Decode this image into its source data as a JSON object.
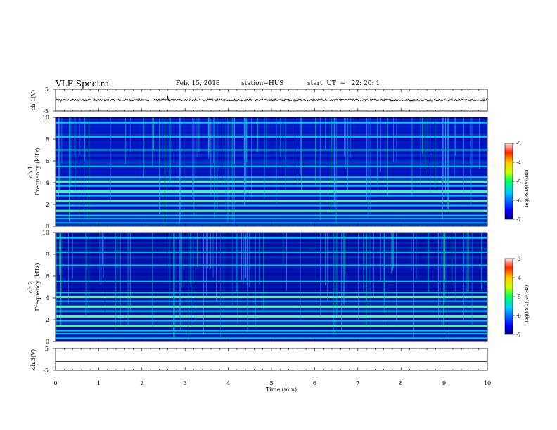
{
  "header": {
    "title": "VLF Spectra",
    "date": "Feb. 15, 2018",
    "station": "station=HUS",
    "start": "start  UT  =   22: 20: 1"
  },
  "chart_data": [
    {
      "type": "line",
      "panel": "ch1-waveform",
      "ylabel": "ch.1(V)",
      "ylim": [
        -5,
        5
      ],
      "yticks": [
        "5",
        "-5"
      ],
      "description_values": {
        "baseline_V": 0,
        "noise_amplitude_V": 0.5
      }
    },
    {
      "type": "heatmap",
      "panel": "ch1-spectrogram",
      "ylabel": "ch.1\nFrequency  (kHz)",
      "ylim": [
        0,
        10
      ],
      "yticks": [
        "0",
        "2",
        "4",
        "6",
        "8",
        "10"
      ],
      "xlim": [
        0,
        10
      ],
      "colorbar": {
        "label": "log(PSD)(V²/Hz)",
        "range": [
          -7,
          -3
        ],
        "ticks": [
          "-3",
          "-4",
          "-5",
          "-6",
          "-7"
        ]
      },
      "bands_kHz": [
        0.3,
        0.7,
        1.0,
        1.4,
        1.9,
        2.3,
        2.8,
        3.2,
        3.7,
        4.1,
        4.5,
        5.5,
        7.0,
        8.2,
        9.5
      ],
      "strong_bands_kHz": [
        1.4,
        2.3,
        3.2,
        4.1
      ]
    },
    {
      "type": "heatmap",
      "panel": "ch2-spectrogram",
      "ylabel": "ch.2\nFrequency  (kHz)",
      "ylim": [
        0,
        10
      ],
      "yticks": [
        "0",
        "2",
        "4",
        "6",
        "8",
        "10"
      ],
      "xlim": [
        0,
        10
      ],
      "colorbar": {
        "label": "log(PSD)(V²/Hz)",
        "range": [
          -7,
          -3
        ],
        "ticks": [
          "-3",
          "-4",
          "-5",
          "-6",
          "-7"
        ]
      },
      "bands_kHz": [
        0.3,
        0.7,
        1.0,
        1.4,
        1.9,
        2.3,
        2.8,
        3.2,
        3.7,
        4.1,
        4.5,
        5.5,
        7.0,
        8.2,
        9.5
      ],
      "strong_bands_kHz": [
        1.4,
        2.3,
        3.2,
        4.1
      ]
    },
    {
      "type": "line",
      "panel": "ch3-waveform",
      "ylabel": "ch.3(V)",
      "ylim": [
        -5,
        5
      ],
      "yticks": [
        "5",
        "-5"
      ],
      "xlabel": "Time  (min)",
      "xlim": [
        0,
        10
      ],
      "xticks": [
        "0",
        "1",
        "2",
        "3",
        "4",
        "5",
        "6",
        "7",
        "8",
        "9",
        "10"
      ],
      "description_values": {
        "baseline_V": -1
      }
    }
  ]
}
